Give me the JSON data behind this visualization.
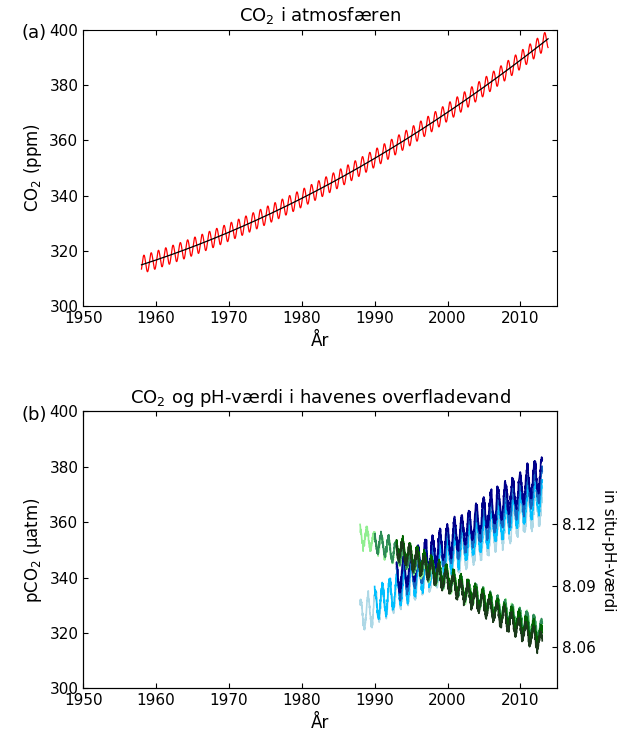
{
  "title_a": "CO$_2$ i atmosfæren",
  "title_b": "CO$_2$ og pH-værdi i havenes overfladevand",
  "panel_a_label": "(a)",
  "panel_b_label": "(b)",
  "ax_a": {
    "xlabel": "År",
    "ylabel": "CO$_2$ (ppm)",
    "xlim": [
      1950,
      2015
    ],
    "ylim": [
      300,
      400
    ],
    "xticks": [
      1950,
      1960,
      1970,
      1980,
      1990,
      2000,
      2010
    ],
    "yticks": [
      300,
      320,
      340,
      360,
      380,
      400
    ]
  },
  "ax_b": {
    "xlabel": "År",
    "ylabel_left": "pCO$_2$ (μatm)",
    "ylabel_right": "in situ-pH-værdi",
    "xlim": [
      1950,
      2015
    ],
    "ylim_left": [
      300,
      400
    ],
    "ylim_right": [
      8.04,
      8.175
    ],
    "xticks": [
      1950,
      1960,
      1970,
      1980,
      1990,
      2000,
      2010
    ],
    "yticks_left": [
      300,
      320,
      340,
      360,
      380,
      400
    ],
    "yticks_right": [
      8.06,
      8.09,
      8.12
    ]
  },
  "co2_trend_color": "#000000",
  "co2_seasonal_color": "#ff0000",
  "blue_colors": [
    "#ADD8E6",
    "#00BFFF",
    "#1565C0",
    "#00008B"
  ],
  "green_colors": [
    "#90EE90",
    "#2E8B57",
    "#006400",
    "#1B3A1B"
  ]
}
